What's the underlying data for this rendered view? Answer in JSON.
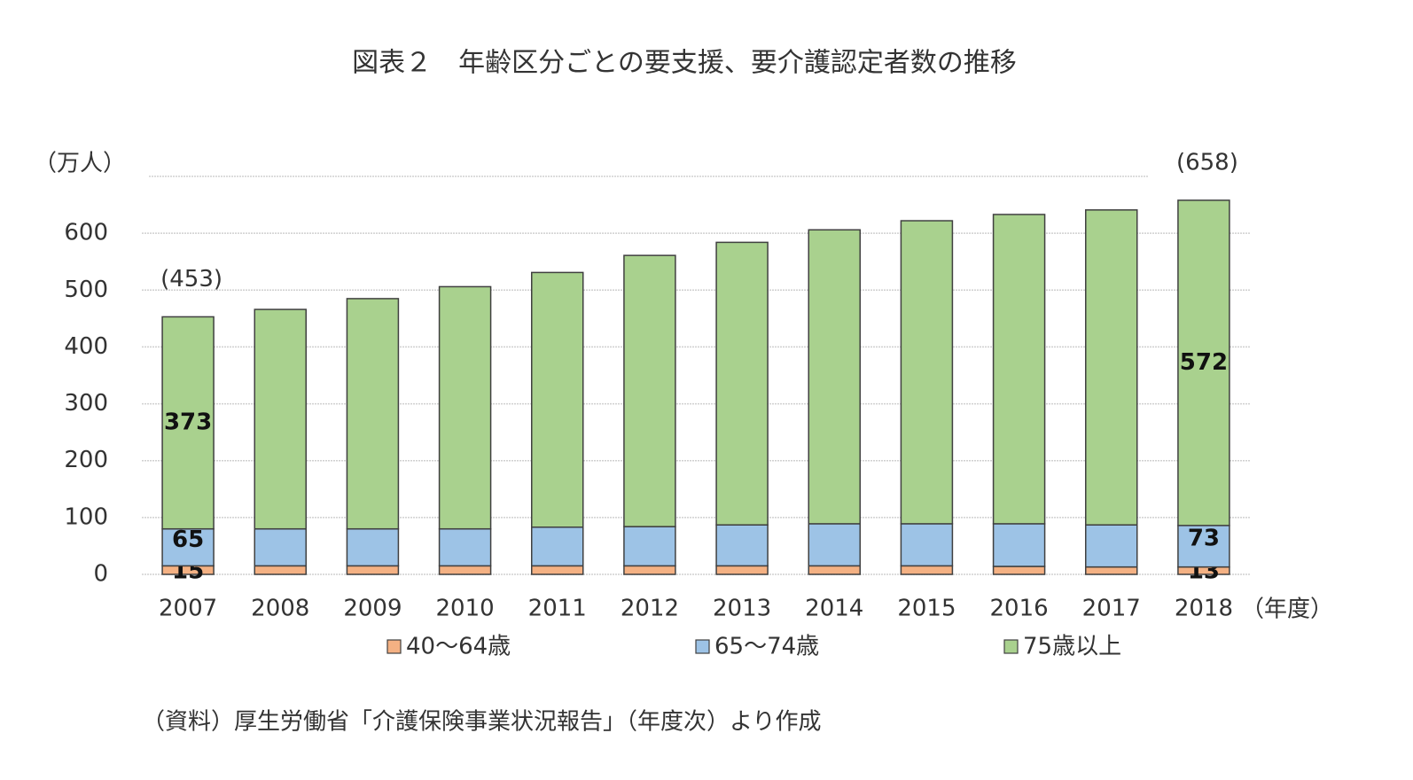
{
  "chart_data": {
    "type": "stacked_bar",
    "title": "図表２　年齢区分ごとの要支援、要介護認定者数の推移",
    "ylabel": "（万人）",
    "xlabel": "（年度）",
    "source": "（資料）厚生労働省「介護保険事業状況報告」（年度次）より作成",
    "categories": [
      "2007",
      "2008",
      "2009",
      "2010",
      "2011",
      "2012",
      "2013",
      "2014",
      "2015",
      "2016",
      "2017",
      "2018"
    ],
    "series": [
      {
        "name": "40～64歳",
        "color": "#f4b183",
        "values": [
          15,
          15,
          15,
          15,
          15,
          15,
          15,
          15,
          15,
          14,
          13,
          13
        ],
        "value_labels": [
          "15",
          null,
          null,
          null,
          null,
          null,
          null,
          null,
          null,
          null,
          null,
          "13"
        ]
      },
      {
        "name": "65～74歳",
        "color": "#9dc3e6",
        "values": [
          65,
          65,
          65,
          65,
          68,
          69,
          72,
          74,
          74,
          75,
          74,
          73
        ],
        "value_labels": [
          "65",
          null,
          null,
          null,
          null,
          null,
          null,
          null,
          null,
          null,
          null,
          "73"
        ]
      },
      {
        "name": "75歳以上",
        "color": "#a9d18e",
        "values": [
          373,
          386,
          405,
          426,
          448,
          477,
          497,
          517,
          533,
          544,
          554,
          572
        ],
        "value_labels": [
          "373",
          null,
          null,
          null,
          null,
          null,
          null,
          null,
          null,
          null,
          null,
          "572"
        ]
      }
    ],
    "annotations": [
      {
        "text": "(453)",
        "category": 0,
        "value": 453
      },
      {
        "text": "(658)",
        "category": 11,
        "value": 658
      }
    ],
    "ylim": [
      0,
      700
    ],
    "yticks": [
      0,
      100,
      200,
      300,
      400,
      500,
      600
    ],
    "grid": true,
    "legend": "bottom"
  }
}
